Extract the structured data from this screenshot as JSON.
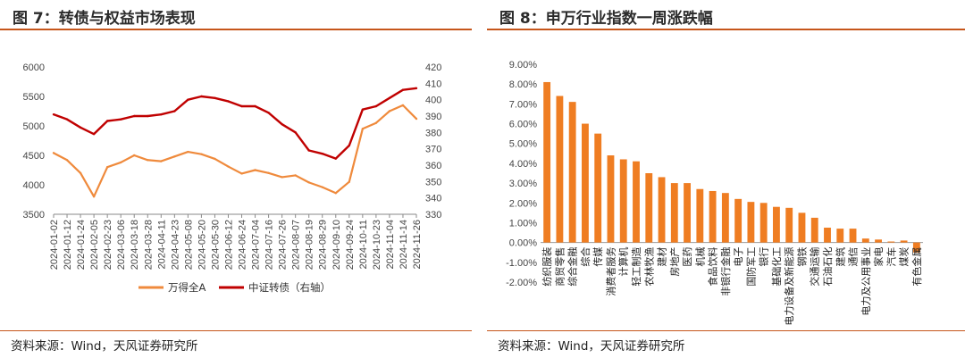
{
  "left": {
    "title": "图 7：转债与权益市场表现",
    "source": "资料来源：Wind，天风证券研究所",
    "legend": [
      "万得全A",
      "中证转债（右轴）"
    ]
  },
  "right": {
    "title": "图 8：申万行业指数一周涨跌幅",
    "source": "资料来源：Wind，天风证券研究所"
  },
  "colors": {
    "accent": "#c6561b",
    "series_a": "#ef8a3c",
    "series_b": "#c00000",
    "bar": "#ef7d22"
  },
  "chart_data": [
    {
      "type": "line",
      "ylim_left": [
        3500,
        6000
      ],
      "ylim_right": [
        330,
        420
      ],
      "yticks_left": [
        "3500",
        "4000",
        "4500",
        "5000",
        "5500",
        "6000"
      ],
      "yticks_right": [
        "330",
        "340",
        "350",
        "360",
        "370",
        "380",
        "390",
        "400",
        "410",
        "420"
      ],
      "x_ticks": [
        "2024-01-02",
        "2024-01-12",
        "2024-01-24",
        "2024-02-05",
        "2024-02-23",
        "2024-03-06",
        "2024-03-18",
        "2024-03-28",
        "2024-04-11",
        "2024-04-23",
        "2024-05-08",
        "2024-05-20",
        "2024-05-30",
        "2024-06-12",
        "2024-06-24",
        "2024-07-04",
        "2024-07-16",
        "2024-07-26",
        "2024-08-07",
        "2024-08-19",
        "2024-08-29",
        "2024-09-10",
        "2024-09-24",
        "2024-10-11",
        "2024-10-23",
        "2024-11-04",
        "2024-11-14",
        "2024-11-26"
      ],
      "series": [
        {
          "name": "万得全A",
          "axis": "left",
          "x": [
            "2024-01-02",
            "2024-01-12",
            "2024-01-24",
            "2024-02-05",
            "2024-02-23",
            "2024-03-06",
            "2024-03-18",
            "2024-03-28",
            "2024-04-11",
            "2024-04-23",
            "2024-05-08",
            "2024-05-20",
            "2024-05-30",
            "2024-06-12",
            "2024-06-24",
            "2024-07-04",
            "2024-07-16",
            "2024-07-26",
            "2024-08-07",
            "2024-08-19",
            "2024-08-29",
            "2024-09-10",
            "2024-09-24",
            "2024-10-11",
            "2024-10-23",
            "2024-11-04",
            "2024-11-14",
            "2024-11-26"
          ],
          "values": [
            4540,
            4420,
            4200,
            3800,
            4300,
            4380,
            4500,
            4420,
            4400,
            4480,
            4560,
            4520,
            4440,
            4310,
            4190,
            4250,
            4200,
            4130,
            4160,
            4040,
            3960,
            3860,
            4050,
            4950,
            5050,
            5250,
            5350,
            5120
          ]
        },
        {
          "name": "中证转债（右轴）",
          "axis": "right",
          "x": [
            "2024-01-02",
            "2024-01-12",
            "2024-01-24",
            "2024-02-05",
            "2024-02-23",
            "2024-03-06",
            "2024-03-18",
            "2024-03-28",
            "2024-04-11",
            "2024-04-23",
            "2024-05-08",
            "2024-05-20",
            "2024-05-30",
            "2024-06-12",
            "2024-06-24",
            "2024-07-04",
            "2024-07-16",
            "2024-07-26",
            "2024-08-07",
            "2024-08-19",
            "2024-08-29",
            "2024-09-10",
            "2024-09-24",
            "2024-10-11",
            "2024-10-23",
            "2024-11-04",
            "2024-11-14",
            "2024-11-26"
          ],
          "values": [
            391,
            388,
            383,
            379,
            387,
            388,
            390,
            390,
            391,
            393,
            400,
            402,
            401,
            399,
            396,
            396,
            392,
            385,
            380,
            369,
            367,
            364,
            372,
            394,
            396,
            401,
            406,
            407
          ]
        }
      ]
    },
    {
      "type": "bar",
      "ylim": [
        -2.0,
        9.0
      ],
      "yticks": [
        "-2.00%",
        "-1.00%",
        "0.00%",
        "1.00%",
        "2.00%",
        "3.00%",
        "4.00%",
        "5.00%",
        "6.00%",
        "7.00%",
        "8.00%",
        "9.00%"
      ],
      "categories": [
        "纺织服装",
        "商贸零售",
        "综合金融",
        "综合",
        "传媒",
        "消费者服务",
        "计算机",
        "轻工制造",
        "农林牧渔",
        "建材",
        "房地产",
        "医药",
        "机械",
        "食品饮料",
        "非银行金融",
        "电子",
        "国防军工",
        "银行",
        "基础化工",
        "电力设备及新能源",
        "钢铁",
        "交通运输",
        "石油石化",
        "建筑",
        "通信",
        "电力及公用事业",
        "家电",
        "汽车",
        "煤炭",
        "有色金属"
      ],
      "values": [
        8.1,
        7.4,
        7.1,
        6.0,
        5.5,
        4.4,
        4.2,
        4.1,
        3.5,
        3.3,
        3.0,
        3.0,
        2.7,
        2.6,
        2.5,
        2.2,
        2.05,
        2.0,
        1.8,
        1.75,
        1.5,
        1.25,
        0.75,
        0.7,
        0.7,
        0.2,
        0.15,
        0.05,
        0.1,
        -0.5
      ]
    }
  ]
}
